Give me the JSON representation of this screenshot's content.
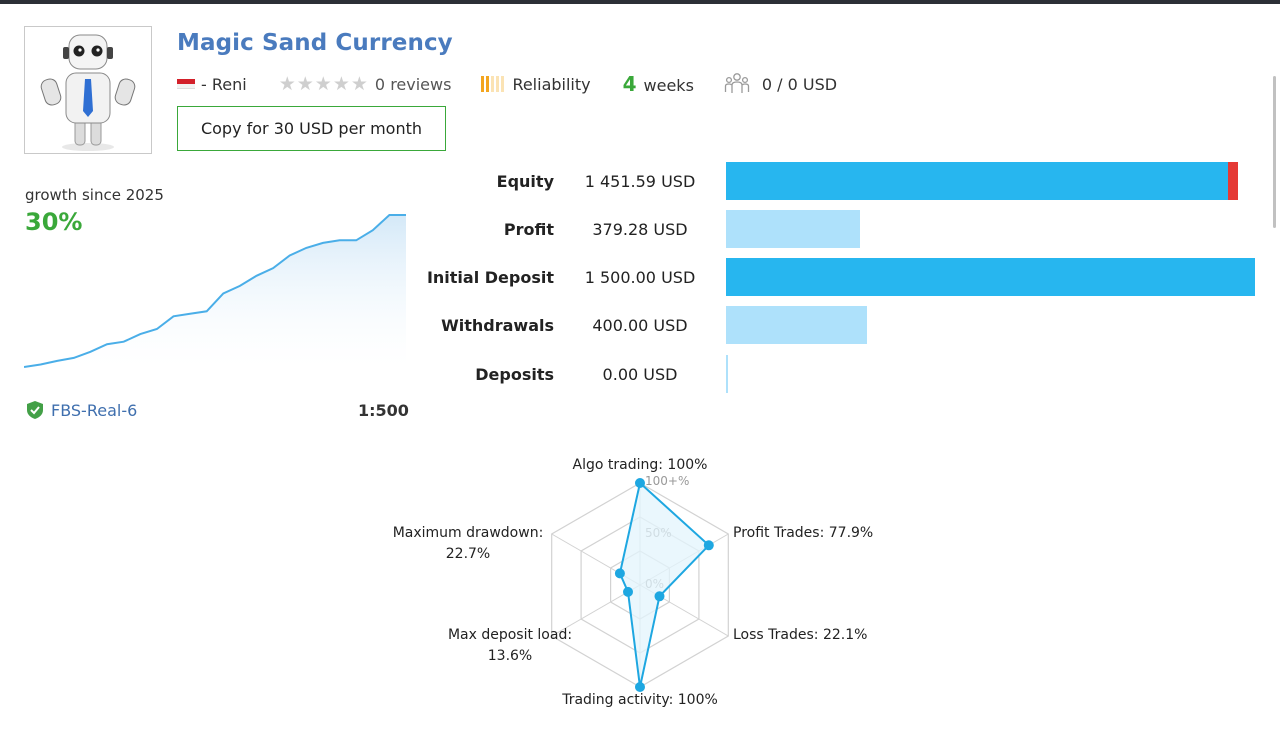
{
  "signal": {
    "name": "Magic Sand Currency",
    "author": "- Reni",
    "reviews": "0 reviews",
    "rating_stars": 0,
    "reliability_label": "Reliability",
    "reliability_level": 2,
    "weeks_number": "4",
    "weeks_label": "weeks",
    "subscribers": "0 / 0 USD",
    "copy_button": "Copy for 30 USD per month",
    "avatar_icon": "robot-avatar-icon"
  },
  "growth": {
    "label": "growth since 2025",
    "value": "30%",
    "broker": "FBS-Real-6",
    "leverage": "1:500",
    "series": [
      0,
      0.5,
      1.2,
      1.8,
      3,
      4.5,
      5,
      6.5,
      7.5,
      10,
      10.5,
      11,
      14.5,
      16,
      18,
      19.5,
      22,
      23.5,
      24.5,
      25,
      25,
      27,
      30,
      30
    ]
  },
  "stats": [
    {
      "label": "Equity",
      "value": "1 451.59 USD",
      "amount": 1451.59,
      "color": "#27b6ef",
      "overlay_color": "#e53935",
      "overlay_fraction": 0.019
    },
    {
      "label": "Profit",
      "value": "379.28 USD",
      "amount": 379.28,
      "color": "#aee1fb"
    },
    {
      "label": "Initial Deposit",
      "value": "1 500.00 USD",
      "amount": 1500.0,
      "color": "#27b6ef"
    },
    {
      "label": "Withdrawals",
      "value": "400.00 USD",
      "amount": 400.0,
      "color": "#aee1fb"
    },
    {
      "label": "Deposits",
      "value": "0.00 USD",
      "amount": 0.0,
      "color": "#aee1fb"
    }
  ],
  "stats_scale_max": 1500,
  "chart_data": {
    "type": "radar",
    "axes": [
      {
        "key": "algo",
        "label": "Algo trading: 100%",
        "value": 100
      },
      {
        "key": "profit",
        "label": "Profit Trades: 77.9%",
        "value": 77.9
      },
      {
        "key": "loss",
        "label": "Loss Trades: 22.1%",
        "value": 22.1
      },
      {
        "key": "activity",
        "label": "Trading activity: 100%",
        "value": 100
      },
      {
        "key": "load",
        "label_lines": [
          "Max deposit load:",
          "13.6%"
        ],
        "value": 13.6
      },
      {
        "key": "drawdown",
        "label_lines": [
          "Maximum drawdown:",
          "22.7%"
        ],
        "value": 22.7
      }
    ],
    "ticks": [
      "0%",
      "50%",
      "100+%"
    ],
    "colors": {
      "line": "#1ea7e1",
      "fill": "#e3f4fc",
      "grid": "#d2d2d2"
    }
  }
}
